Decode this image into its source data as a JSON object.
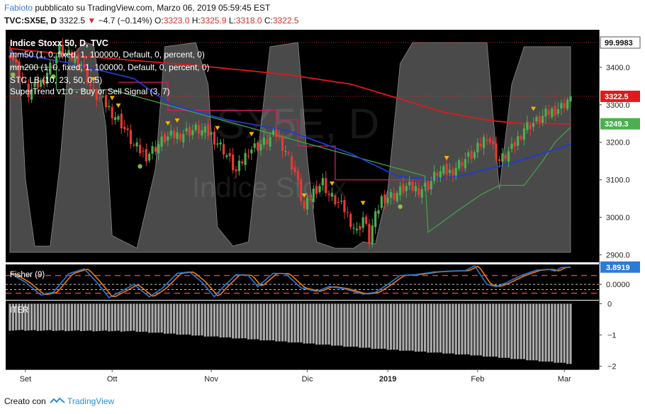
{
  "header": {
    "author": "Fabioto",
    "published_text": "pubblicato su TradingView.com, Marzo 06, 2019 05:59:45 EST",
    "symbol": "TVC:SX5E, D",
    "last": "3322.5",
    "change_arrow": "▼",
    "change": "−4.7 (−0.14%)",
    "open_label": "O:",
    "open": "3323.0",
    "high_label": "H:",
    "high": "3325.9",
    "low_label": "L:",
    "low": "3318.0",
    "close_label": "C:",
    "close": "3322.5"
  },
  "legend": {
    "title": "Indice Stoxx 50, D, TVC",
    "items": [
      "mm50 (1, 0, fixed, 1, 100000, Default, 0, percent, 0)",
      "mm200 (1, 0, fixed, 1, 100000, Default, 0, percent, 0)",
      "STC LB (10, 23, 50, 0.5)",
      "SuperTrend v1.0 - Buy or Sell Signal (3, 7)"
    ]
  },
  "watermark": {
    "symbol": "SX5E, D",
    "name": "Indice Stoxx"
  },
  "fisher_title": "Fisher (9)",
  "iter_title": "ITER",
  "footer": {
    "prefix": "Creato con",
    "brand": "TradingView"
  },
  "colors": {
    "up": "#4caf50",
    "down": "#e53935",
    "ma50": "#1e3ad4",
    "ma200": "#e0191b",
    "supertrend_down": "#d81b60",
    "supertrend_up": "#43a047",
    "stc_fill": "#575757",
    "fisher_a": "#2b7bd8",
    "fisher_b": "#f57c00",
    "iter_bar": "#a9a9a9"
  },
  "chart_data": [
    {
      "type": "candlestick",
      "title": "Indice Stoxx 50, D, TVC",
      "ylim": [
        2880,
        3500
      ],
      "y_ticks": [
        2900.0,
        3000.0,
        3100.0,
        3200.0,
        3300.0,
        3400.0
      ],
      "x_ticks": [
        "Set",
        "Ott",
        "Nov",
        "Dic",
        "2019",
        "Feb",
        "Mar"
      ],
      "price_labels": {
        "last": "3322.5",
        "ma200": "3249.3",
        "stc_top": "99.9983"
      },
      "anchors_close": [
        [
          0,
          3440
        ],
        [
          6,
          3330
        ],
        [
          10,
          3360
        ],
        [
          16,
          3445
        ],
        [
          23,
          3410
        ],
        [
          27,
          3330
        ],
        [
          31,
          3300
        ],
        [
          36,
          3250
        ],
        [
          40,
          3190
        ],
        [
          44,
          3165
        ],
        [
          50,
          3210
        ],
        [
          56,
          3225
        ],
        [
          60,
          3235
        ],
        [
          65,
          3220
        ],
        [
          69,
          3180
        ],
        [
          73,
          3120
        ],
        [
          77,
          3180
        ],
        [
          81,
          3195
        ],
        [
          86,
          3220
        ],
        [
          89,
          3180
        ],
        [
          92,
          3120
        ],
        [
          95,
          3020
        ],
        [
          98,
          3070
        ],
        [
          101,
          3095
        ],
        [
          103,
          3060
        ],
        [
          108,
          3020
        ],
        [
          112,
          2960
        ],
        [
          114,
          3000
        ],
        [
          116,
          2940
        ],
        [
          117,
          2975
        ],
        [
          120,
          3050
        ],
        [
          124,
          3060
        ],
        [
          128,
          3080
        ],
        [
          132,
          3075
        ],
        [
          135,
          3085
        ],
        [
          138,
          3120
        ],
        [
          142,
          3120
        ],
        [
          146,
          3150
        ],
        [
          150,
          3170
        ],
        [
          154,
          3220
        ],
        [
          158,
          3150
        ],
        [
          162,
          3180
        ],
        [
          166,
          3240
        ],
        [
          170,
          3255
        ],
        [
          174,
          3280
        ],
        [
          178,
          3295
        ],
        [
          181,
          3322.5
        ]
      ],
      "anchors_ma50": [
        [
          0,
          3440
        ],
        [
          20,
          3410
        ],
        [
          40,
          3370
        ],
        [
          52,
          3300
        ],
        [
          70,
          3260
        ],
        [
          90,
          3230
        ],
        [
          110,
          3170
        ],
        [
          125,
          3110
        ],
        [
          135,
          3100
        ],
        [
          145,
          3110
        ],
        [
          160,
          3140
        ],
        [
          172,
          3170
        ],
        [
          181,
          3195
        ]
      ],
      "anchors_ma200": [
        [
          0,
          3450
        ],
        [
          30,
          3425
        ],
        [
          60,
          3405
        ],
        [
          90,
          3380
        ],
        [
          110,
          3355
        ],
        [
          125,
          3318
        ],
        [
          140,
          3280
        ],
        [
          155,
          3258
        ],
        [
          165,
          3250
        ],
        [
          181,
          3249.3
        ]
      ],
      "supertrend_down": [
        [
          35,
          3360
        ],
        [
          51,
          3360
        ],
        [
          51,
          3285
        ],
        [
          86,
          3285
        ],
        [
          86,
          3260
        ],
        [
          93,
          3260
        ],
        [
          93,
          3190
        ],
        [
          105,
          3190
        ],
        [
          105,
          3100
        ],
        [
          134,
          3100
        ]
      ],
      "supertrend_up": [
        [
          0,
          3400
        ],
        [
          15,
          3400
        ],
        [
          15,
          3340
        ],
        [
          33,
          3340
        ],
        [
          134,
          3110
        ],
        [
          135,
          2960
        ],
        [
          145,
          3020
        ],
        [
          152,
          3060
        ],
        [
          158,
          3085
        ],
        [
          166,
          3085
        ],
        [
          172,
          3150
        ],
        [
          176,
          3200
        ],
        [
          181,
          3240
        ]
      ],
      "sell_signals": [
        27,
        33,
        35,
        51,
        54,
        67,
        78,
        95,
        104,
        114,
        141,
        169
      ],
      "buy_signals": [
        1,
        14,
        42,
        126
      ],
      "stc_oscillator": [
        [
          0,
          98
        ],
        [
          3,
          90
        ],
        [
          5,
          35
        ],
        [
          8,
          3
        ],
        [
          13,
          3
        ],
        [
          16,
          40
        ],
        [
          19,
          92
        ],
        [
          24,
          100
        ],
        [
          27,
          99
        ],
        [
          31,
          60
        ],
        [
          33,
          8
        ],
        [
          41,
          2
        ],
        [
          47,
          40
        ],
        [
          50,
          98
        ],
        [
          60,
          100
        ],
        [
          64,
          80
        ],
        [
          67,
          12
        ],
        [
          72,
          3
        ],
        [
          77,
          5
        ],
        [
          81,
          60
        ],
        [
          84,
          98
        ],
        [
          93,
          100
        ],
        [
          96,
          45
        ],
        [
          99,
          5
        ],
        [
          105,
          2
        ],
        [
          111,
          2
        ],
        [
          114,
          5
        ],
        [
          118,
          4
        ],
        [
          122,
          30
        ],
        [
          126,
          90
        ],
        [
          130,
          100
        ],
        [
          154,
          100
        ],
        [
          158,
          30
        ],
        [
          162,
          80
        ],
        [
          166,
          98
        ],
        [
          181,
          98
        ]
      ]
    },
    {
      "type": "line",
      "title": "Fisher (9)",
      "ylim": [
        -3.5,
        4.5
      ],
      "y_ticks": [
        0.0
      ],
      "current": "3.8919",
      "reference_levels": [
        2.0,
        -2.0
      ],
      "series": [
        {
          "values": [
            [
              0,
              2.5
            ],
            [
              5,
              0.5
            ],
            [
              10,
              -2.4
            ],
            [
              14,
              -1.8
            ],
            [
              19,
              2.4
            ],
            [
              24,
              3.5
            ],
            [
              28,
              0.5
            ],
            [
              32,
              -3.0
            ],
            [
              37,
              -1.2
            ],
            [
              40,
              0.0
            ],
            [
              45,
              -2.8
            ],
            [
              49,
              -1.0
            ],
            [
              54,
              2.5
            ],
            [
              58,
              2.8
            ],
            [
              62,
              0.5
            ],
            [
              66,
              -2.8
            ],
            [
              69,
              -0.5
            ],
            [
              73,
              2.2
            ],
            [
              77,
              2.0
            ],
            [
              80,
              -0.5
            ],
            [
              85,
              2.5
            ],
            [
              89,
              2.4
            ],
            [
              94,
              -0.8
            ],
            [
              99,
              -1.6
            ],
            [
              103,
              -0.5
            ],
            [
              108,
              -1.0
            ],
            [
              114,
              -2.2
            ],
            [
              118,
              -1.8
            ],
            [
              122,
              0.0
            ],
            [
              126,
              2.0
            ],
            [
              131,
              2.2
            ],
            [
              137,
              2.8
            ],
            [
              142,
              3.0
            ],
            [
              147,
              3.1
            ],
            [
              150,
              4.2
            ],
            [
              154,
              0.0
            ],
            [
              157,
              -0.5
            ],
            [
              160,
              0.3
            ],
            [
              165,
              2.0
            ],
            [
              170,
              3.2
            ],
            [
              174,
              3.4
            ],
            [
              176,
              3.0
            ],
            [
              178,
              3.8
            ],
            [
              181,
              3.9
            ]
          ]
        }
      ]
    },
    {
      "type": "bar",
      "title": "ITER",
      "ylim": [
        -2.1,
        0.1
      ],
      "y_ticks": [
        0,
        -1,
        -2
      ],
      "value_trend": [
        [
          0,
          -0.85
        ],
        [
          40,
          -0.88
        ],
        [
          80,
          -1.15
        ],
        [
          120,
          -1.45
        ],
        [
          150,
          -1.65
        ],
        [
          181,
          -1.92
        ]
      ]
    }
  ]
}
